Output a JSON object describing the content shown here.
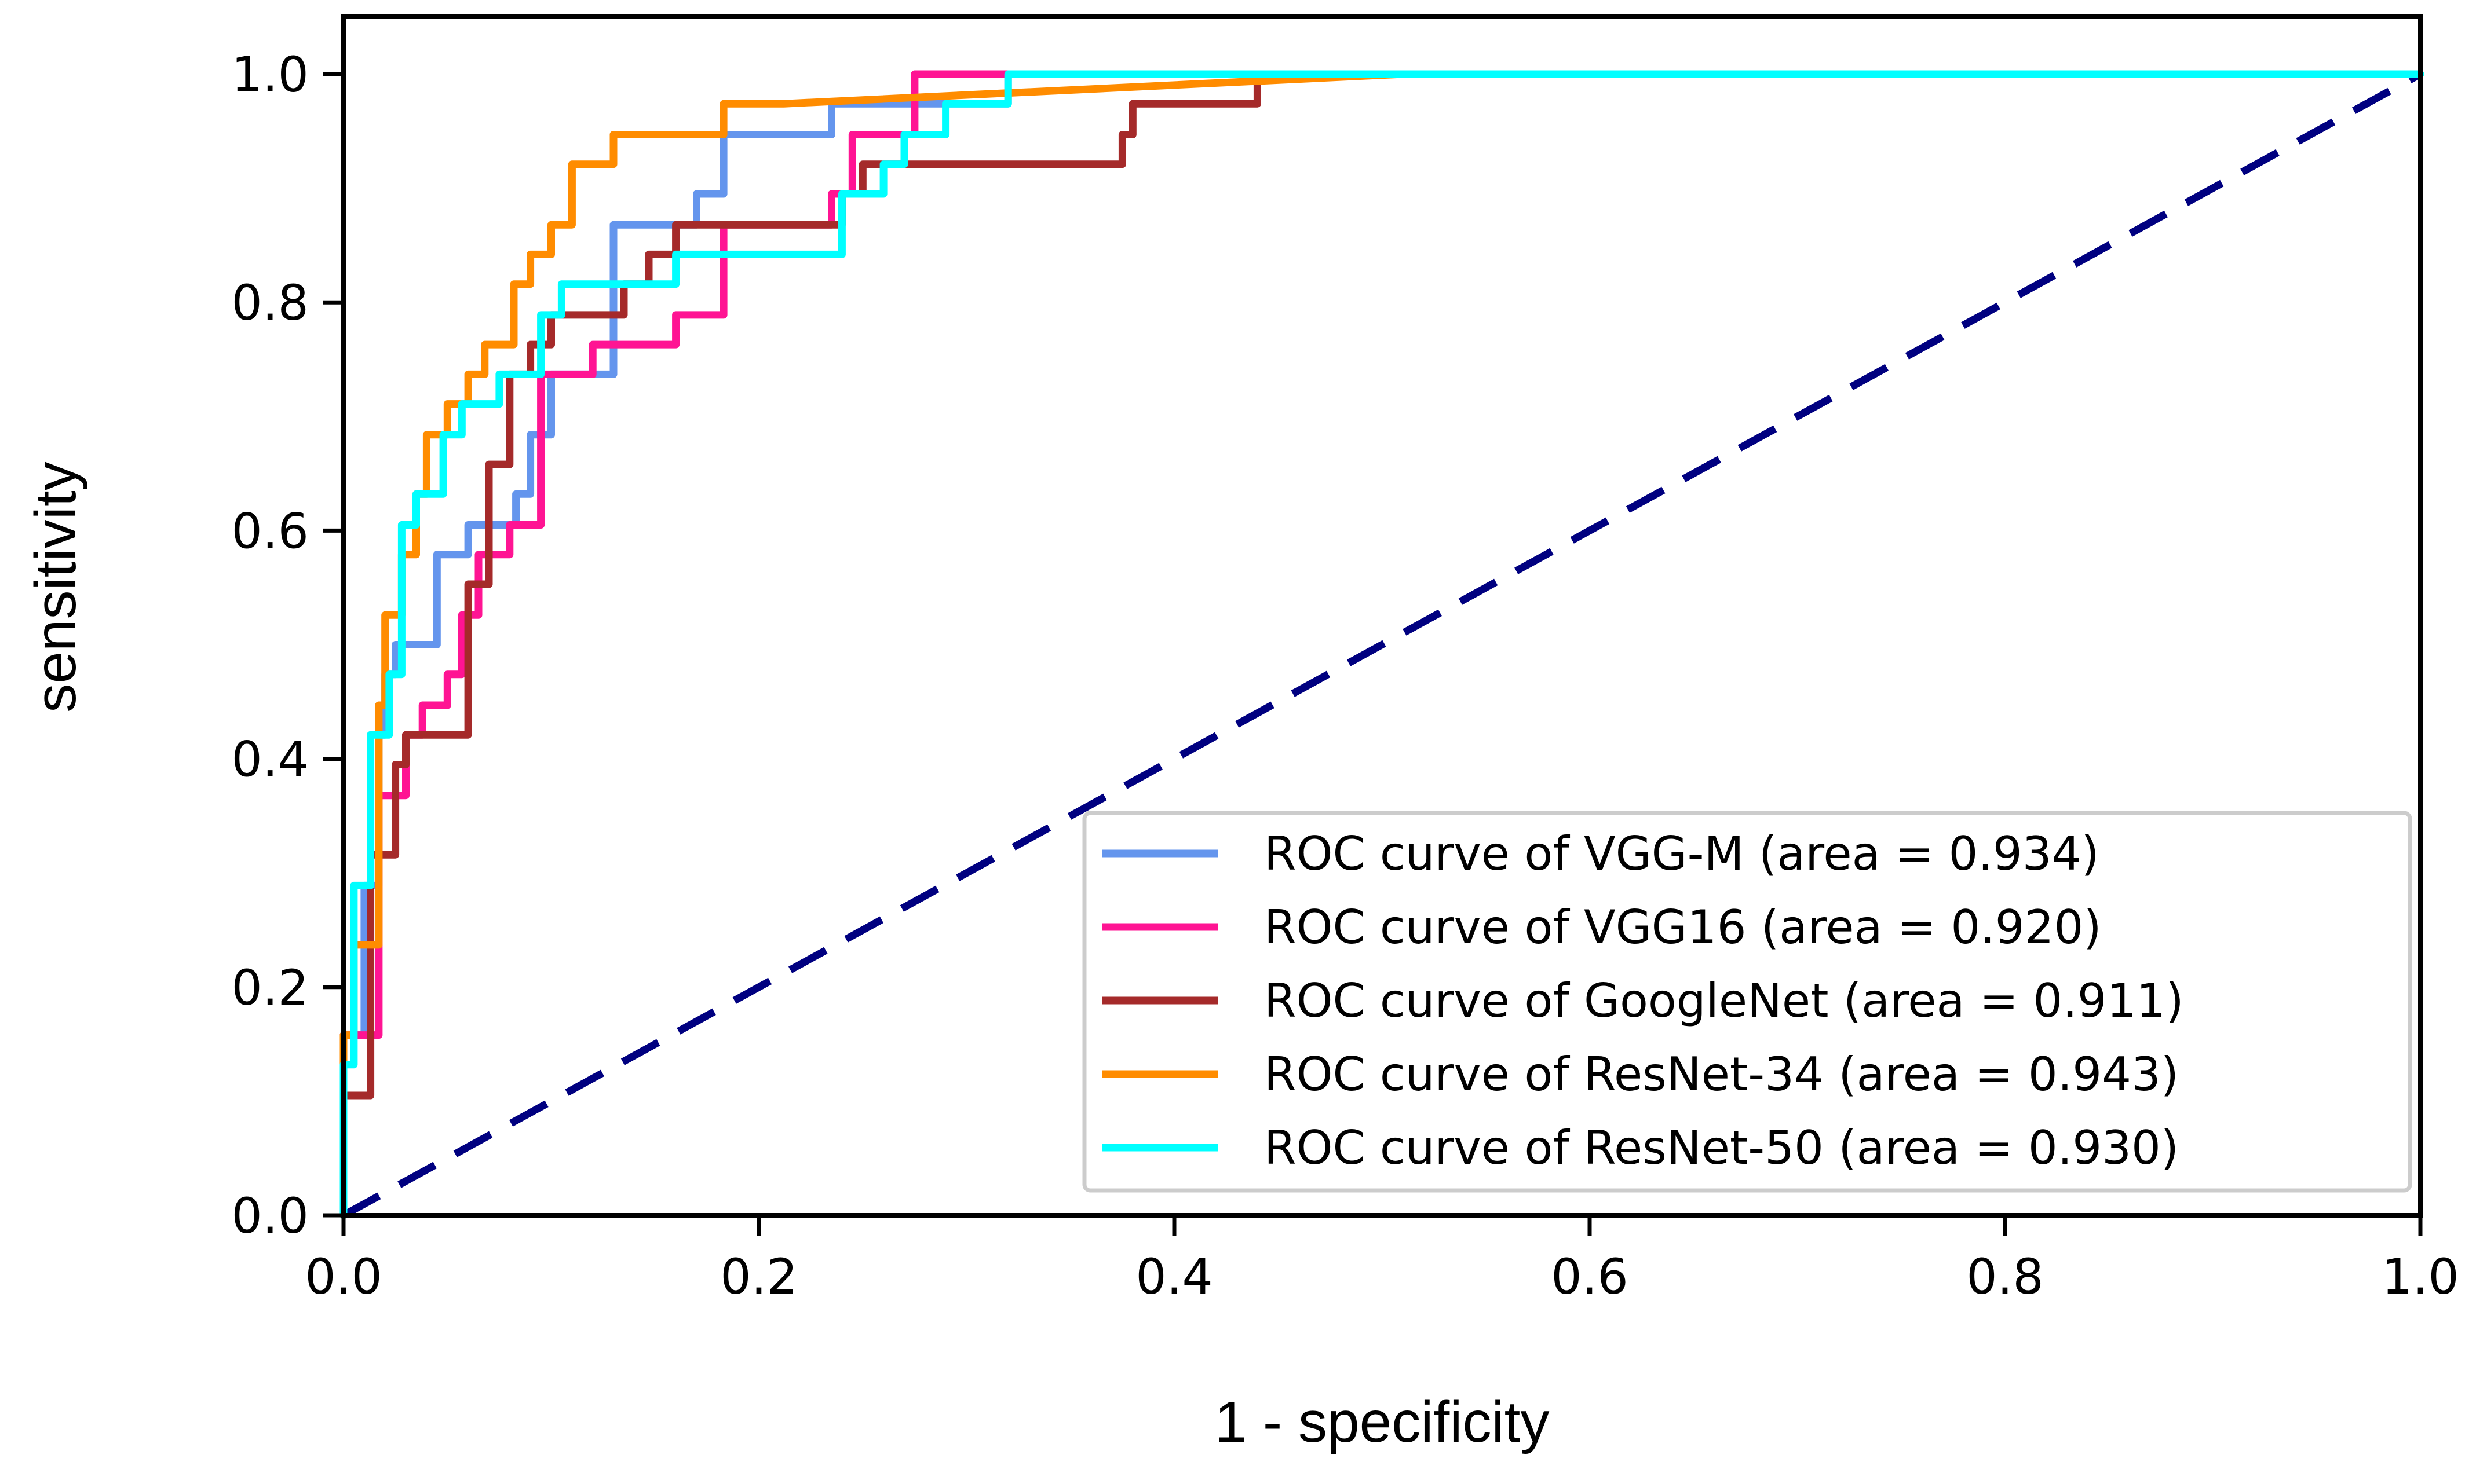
{
  "chart_data": {
    "type": "line",
    "title": "",
    "xlabel": "1 - specificity",
    "ylabel": "sensitivity",
    "xlim": [
      0.0,
      1.0
    ],
    "ylim": [
      0.0,
      1.0
    ],
    "grid": false,
    "legend_position": "lower-right",
    "x_ticks": [
      "0.0",
      "0.2",
      "0.4",
      "0.6",
      "0.8",
      "1.0"
    ],
    "y_ticks": [
      "0.0",
      "0.2",
      "0.4",
      "0.6",
      "0.8",
      "1.0"
    ],
    "series": [
      {
        "name": "ROC curve of VGG-M (area = 0.934)",
        "color": "#6495ED",
        "step": true,
        "x": [
          0.0,
          0.0,
          0.01,
          0.01,
          0.017,
          0.017,
          0.02,
          0.02,
          0.025,
          0.025,
          0.03,
          0.03,
          0.045,
          0.045,
          0.06,
          0.06,
          0.07,
          0.07,
          0.083,
          0.083,
          0.09,
          0.09,
          0.1,
          0.1,
          0.13,
          0.13,
          0.17,
          0.17,
          0.183,
          0.183,
          0.235,
          0.235,
          0.32,
          0.32,
          1.0
        ],
        "y": [
          0.0,
          0.158,
          0.158,
          0.289,
          0.289,
          0.421,
          0.421,
          0.474,
          0.474,
          0.5,
          0.5,
          0.5,
          0.5,
          0.579,
          0.579,
          0.605,
          0.605,
          0.605,
          0.605,
          0.632,
          0.632,
          0.684,
          0.684,
          0.737,
          0.737,
          0.868,
          0.868,
          0.895,
          0.895,
          0.947,
          0.947,
          0.974,
          0.974,
          1.0,
          1.0
        ]
      },
      {
        "name": "ROC curve of VGG16 (area = 0.920)",
        "color": "#FF1493",
        "step": true,
        "x": [
          0.0,
          0.0,
          0.017,
          0.017,
          0.03,
          0.03,
          0.038,
          0.038,
          0.05,
          0.05,
          0.057,
          0.057,
          0.065,
          0.065,
          0.08,
          0.08,
          0.095,
          0.095,
          0.12,
          0.12,
          0.16,
          0.16,
          0.183,
          0.183,
          0.235,
          0.235,
          0.245,
          0.245,
          0.275,
          0.275,
          0.32,
          0.32,
          1.0
        ],
        "y": [
          0.0,
          0.158,
          0.158,
          0.368,
          0.368,
          0.421,
          0.421,
          0.447,
          0.447,
          0.474,
          0.474,
          0.526,
          0.526,
          0.579,
          0.579,
          0.605,
          0.605,
          0.737,
          0.737,
          0.763,
          0.763,
          0.789,
          0.789,
          0.868,
          0.868,
          0.895,
          0.895,
          0.947,
          0.947,
          1.0,
          1.0,
          1.0,
          1.0
        ]
      },
      {
        "name": "ROC curve of GoogleNet (area = 0.911)",
        "color": "#A52A2A",
        "step": true,
        "x": [
          0.0,
          0.005,
          0.005,
          0.013,
          0.013,
          0.025,
          0.025,
          0.03,
          0.03,
          0.06,
          0.06,
          0.07,
          0.07,
          0.08,
          0.08,
          0.09,
          0.09,
          0.1,
          0.1,
          0.135,
          0.135,
          0.147,
          0.147,
          0.16,
          0.16,
          0.24,
          0.24,
          0.25,
          0.25,
          0.375,
          0.375,
          0.38,
          0.38,
          0.44,
          0.44,
          1.0
        ],
        "y": [
          0.105,
          0.105,
          0.105,
          0.105,
          0.316,
          0.316,
          0.395,
          0.395,
          0.421,
          0.421,
          0.553,
          0.553,
          0.658,
          0.658,
          0.737,
          0.737,
          0.763,
          0.763,
          0.789,
          0.789,
          0.816,
          0.816,
          0.842,
          0.842,
          0.868,
          0.868,
          0.895,
          0.895,
          0.921,
          0.921,
          0.947,
          0.947,
          0.974,
          0.974,
          1.0,
          1.0
        ]
      },
      {
        "name": "ROC curve of ResNet-34 (area = 0.943)",
        "color": "#FF8C00",
        "step": true,
        "x": [
          0.0,
          0.0,
          0.005,
          0.005,
          0.017,
          0.017,
          0.02,
          0.02,
          0.028,
          0.028,
          0.035,
          0.035,
          0.04,
          0.04,
          0.05,
          0.05,
          0.06,
          0.06,
          0.068,
          0.068,
          0.082,
          0.082,
          0.09,
          0.09,
          0.1,
          0.1,
          0.11,
          0.11,
          0.13,
          0.13,
          0.183,
          0.183,
          0.212,
          0.212,
          0.51,
          0.51,
          1.0
        ],
        "y": [
          0.0,
          0.158,
          0.158,
          0.237,
          0.237,
          0.447,
          0.447,
          0.526,
          0.526,
          0.579,
          0.579,
          0.632,
          0.632,
          0.684,
          0.684,
          0.711,
          0.711,
          0.737,
          0.737,
          0.763,
          0.763,
          0.816,
          0.816,
          0.842,
          0.842,
          0.868,
          0.868,
          0.921,
          0.921,
          0.947,
          0.947,
          0.974,
          0.974,
          0.974,
          1.0,
          1.0,
          1.0
        ]
      },
      {
        "name": "ROC curve of ResNet-50 (area = 0.930)",
        "color": "#00FFFF",
        "step": true,
        "x": [
          0.0,
          0.0,
          0.005,
          0.005,
          0.013,
          0.013,
          0.022,
          0.022,
          0.028,
          0.028,
          0.035,
          0.035,
          0.048,
          0.048,
          0.057,
          0.057,
          0.075,
          0.075,
          0.095,
          0.095,
          0.105,
          0.105,
          0.12,
          0.12,
          0.16,
          0.16,
          0.24,
          0.24,
          0.26,
          0.26,
          0.27,
          0.27,
          0.29,
          0.29,
          0.32,
          0.32,
          1.0
        ],
        "y": [
          0.0,
          0.132,
          0.132,
          0.289,
          0.289,
          0.421,
          0.421,
          0.474,
          0.474,
          0.605,
          0.605,
          0.632,
          0.632,
          0.684,
          0.684,
          0.711,
          0.711,
          0.737,
          0.737,
          0.789,
          0.789,
          0.816,
          0.816,
          0.816,
          0.816,
          0.842,
          0.842,
          0.895,
          0.895,
          0.921,
          0.921,
          0.947,
          0.947,
          0.974,
          0.974,
          1.0,
          1.0
        ]
      }
    ],
    "reference_line": {
      "name": "chance",
      "color": "#000080",
      "dashed": true,
      "x": [
        0.0,
        1.0
      ],
      "y": [
        0.0,
        1.0
      ]
    },
    "legend": [
      {
        "label": "ROC curve of VGG-M (area = 0.934)",
        "color": "#6495ED"
      },
      {
        "label": "ROC curve of VGG16 (area = 0.920)",
        "color": "#FF1493"
      },
      {
        "label": "ROC curve of GoogleNet (area = 0.911)",
        "color": "#A52A2A"
      },
      {
        "label": "ROC curve of ResNet-34 (area = 0.943)",
        "color": "#FF8C00"
      },
      {
        "label": "ROC curve of ResNet-50 (area = 0.930)",
        "color": "#00FFFF"
      }
    ]
  }
}
